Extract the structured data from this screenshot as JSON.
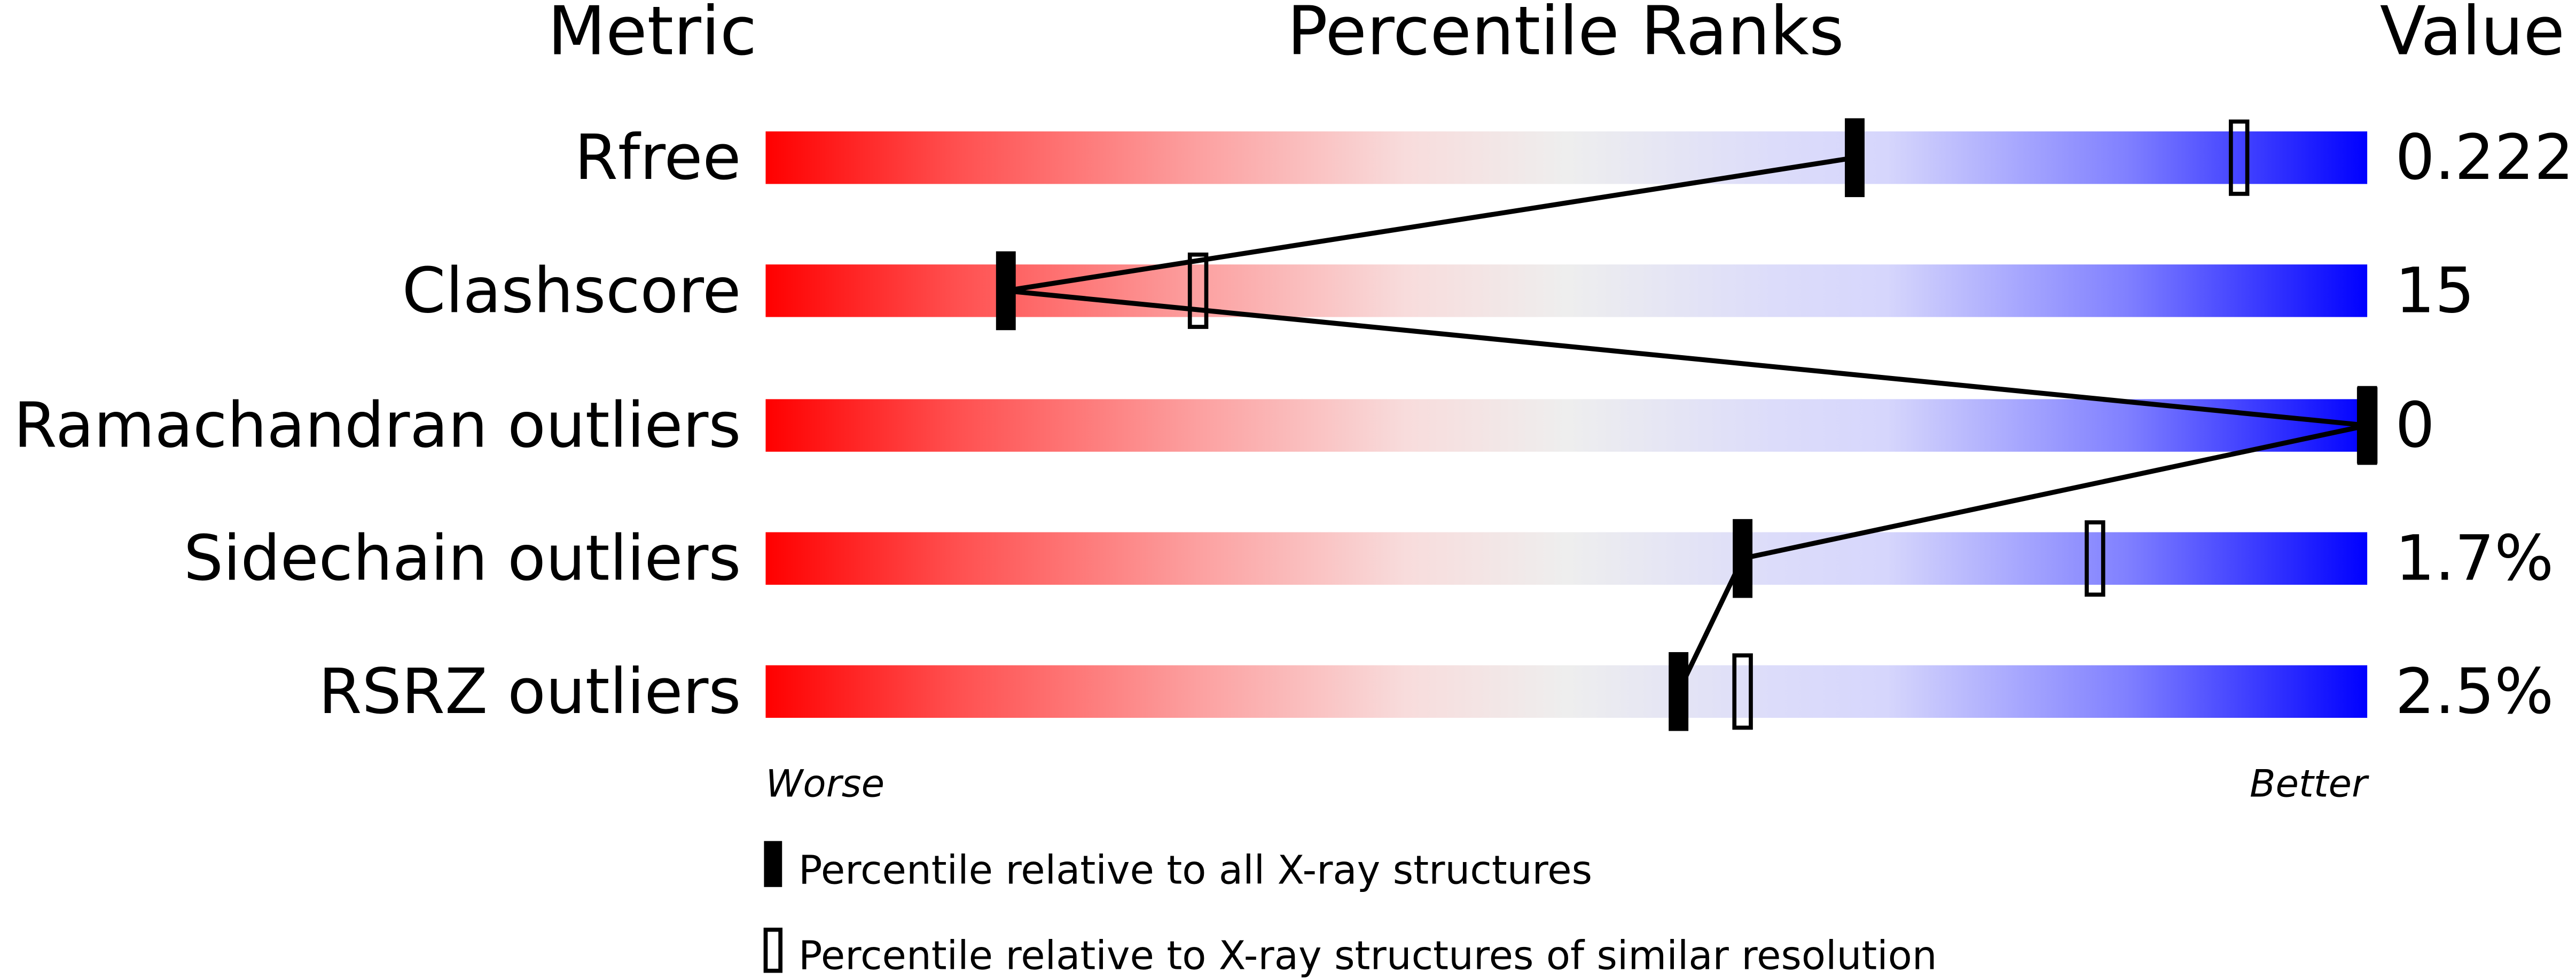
{
  "chart_data": {
    "type": "percentile-bar",
    "headers": {
      "metric": "Metric",
      "percentile": "Percentile Ranks",
      "value": "Value"
    },
    "axis": {
      "left": "Worse",
      "right": "Better",
      "range": [
        0,
        100
      ]
    },
    "colors": {
      "worse": "#ff0000",
      "middle": "#eeeeee",
      "better": "#0000ff",
      "marker": "#000000"
    },
    "metrics": [
      {
        "name": "Rfree",
        "value": "0.222",
        "percentile_all": 68,
        "percentile_similar": 92
      },
      {
        "name": "Clashscore",
        "value": "15",
        "percentile_all": 15,
        "percentile_similar": 27
      },
      {
        "name": "Ramachandran outliers",
        "value": "0",
        "percentile_all": 100,
        "percentile_similar": 100
      },
      {
        "name": "Sidechain outliers",
        "value": "1.7%",
        "percentile_all": 61,
        "percentile_similar": 83
      },
      {
        "name": "RSRZ outliers",
        "value": "2.5%",
        "percentile_all": 57,
        "percentile_similar": 61
      }
    ],
    "legend": {
      "all": "Percentile relative to all X-ray structures",
      "similar": "Percentile relative to X-ray structures of similar resolution"
    }
  }
}
